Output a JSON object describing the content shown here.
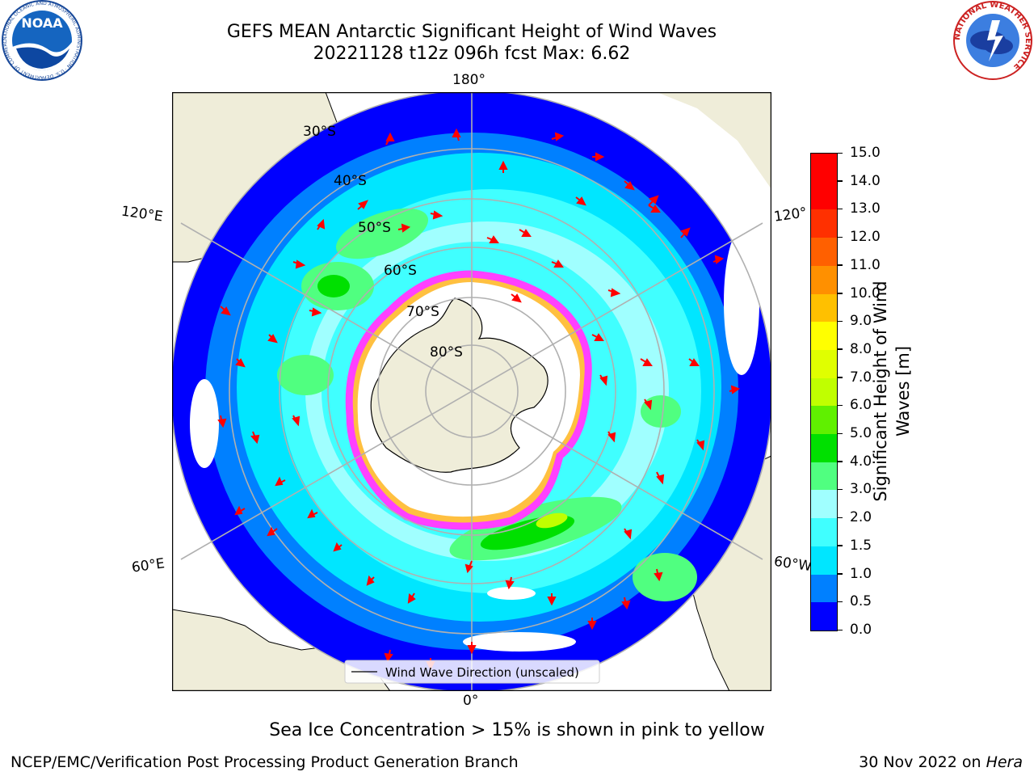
{
  "header": {
    "title_line1": "GEFS MEAN Antarctic Significant Height of Wind Waves",
    "title_line2": "20221128 t12z 096h fcst   Max: 6.62"
  },
  "logos": {
    "noaa_text": "NOAA",
    "noaa_ring": "NATIONAL OCEANIC AND ATMOSPHERIC ADMINISTRATION · U.S. DEPARTMENT OF COMMERCE",
    "nws_ring": "NATIONAL WEATHER SERVICE"
  },
  "map": {
    "longitude_labels": {
      "top": "180°",
      "bottom": "0°",
      "upper_left": "120°E",
      "lower_left": "60°E",
      "upper_right": "120°",
      "lower_right": "60°W"
    },
    "latitude_labels": [
      "30°S",
      "40°S",
      "50°S",
      "60°S",
      "70°S",
      "80°S"
    ],
    "legend_label": "Wind Wave Direction (unscaled)"
  },
  "colorbar": {
    "label_line1": "Significant Height of Wind",
    "label_line2": "Waves [m]",
    "ticks": [
      "0.0",
      "0.5",
      "1.0",
      "1.5",
      "2.0",
      "3.0",
      "4.0",
      "5.0",
      "6.0",
      "7.0",
      "8.0",
      "9.0",
      "10.0",
      "11.0",
      "12.0",
      "13.0",
      "14.0",
      "15.0"
    ],
    "colors": [
      "#0000ff",
      "#0080ff",
      "#00e6ff",
      "#40ffff",
      "#a0ffff",
      "#50ff80",
      "#00e000",
      "#60f000",
      "#c0ff00",
      "#e0ff00",
      "#ffff00",
      "#ffc000",
      "#ff9000",
      "#ff6000",
      "#ff3000",
      "#ff0000",
      "#ff0000"
    ]
  },
  "colors": {
    "land": "#efedd9",
    "ice_pink": "#ff40ff",
    "ice_yellow": "#ffc040",
    "arrow": "#ff0000",
    "grid": "#b0b0b0"
  },
  "footer": {
    "note": "Sea Ice Concentration > 15% is shown in pink to yellow",
    "left": "NCEP/EMC/Verification Post Processing Product Generation Branch",
    "right_prefix": "30 Nov 2022 on ",
    "right_machine": "Hera"
  }
}
